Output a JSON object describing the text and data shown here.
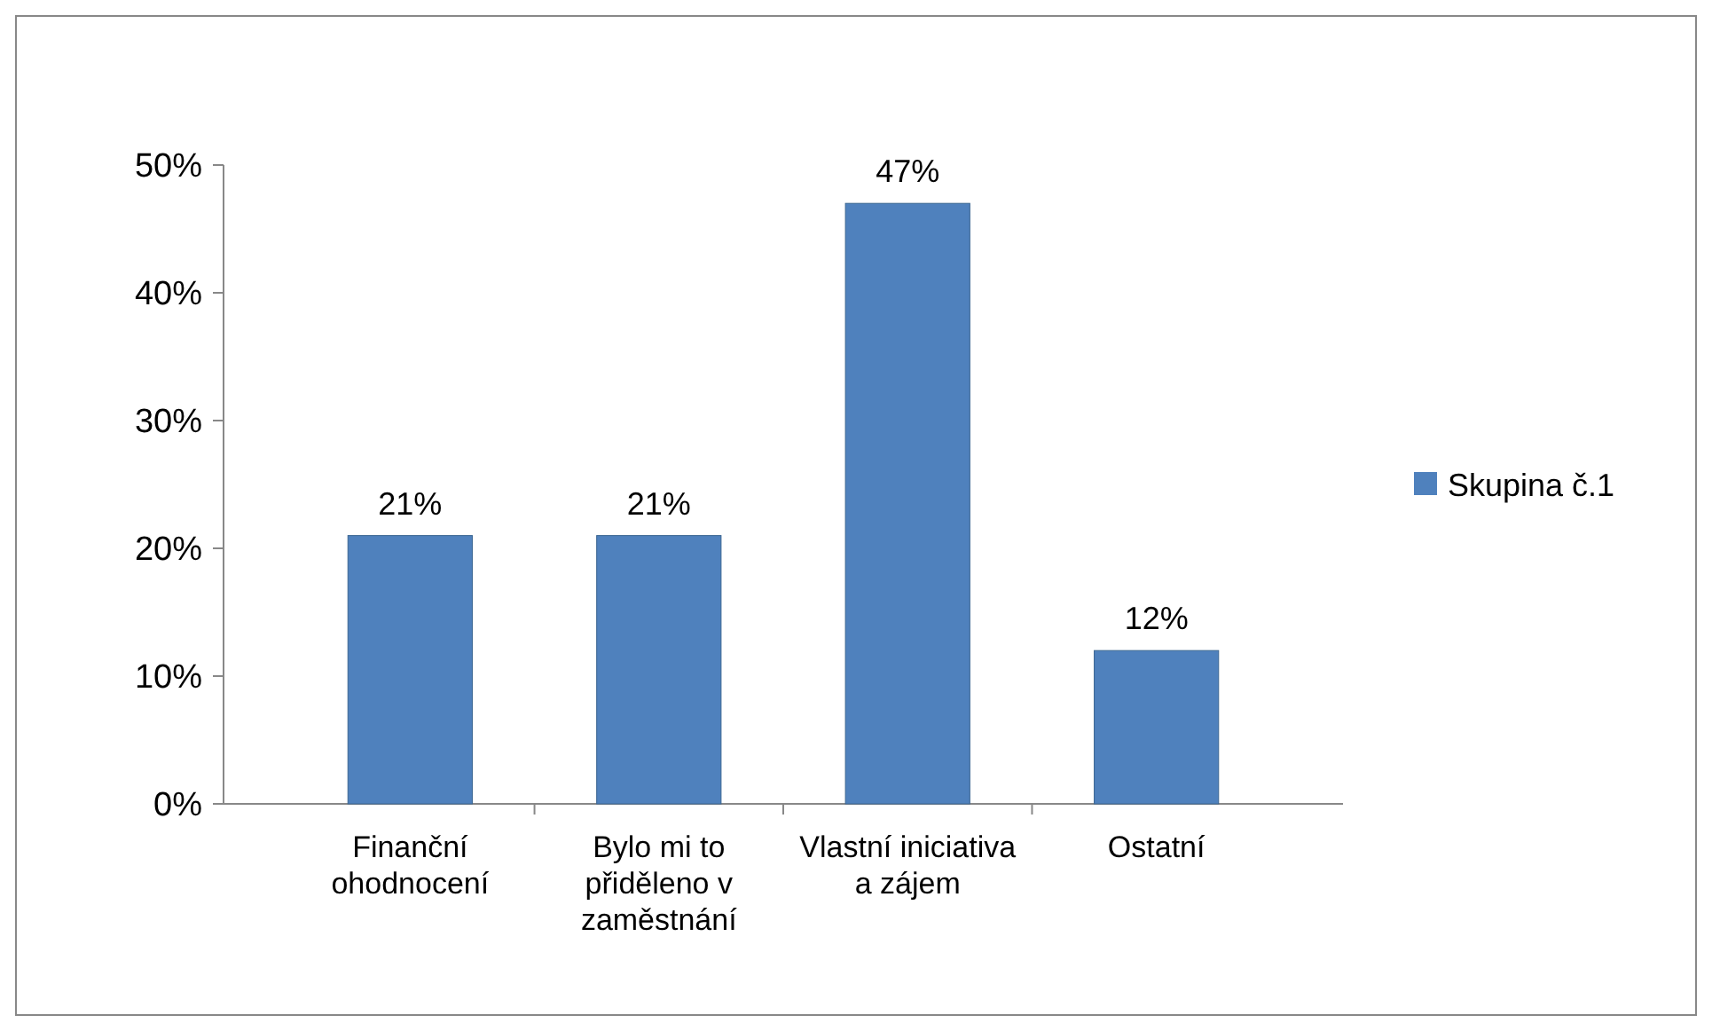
{
  "chart_data": {
    "type": "bar",
    "categories": [
      "Finanční ohodnocení",
      "Bylo mi to přiděleno v zaměstnání",
      "Vlastní iniciativa a zájem",
      "Ostatní"
    ],
    "series": [
      {
        "name": "Skupina č.1",
        "color": "#4f81bd",
        "values": [
          21,
          21,
          47,
          12
        ]
      }
    ],
    "ylim": [
      0,
      50
    ],
    "yticks": [
      {
        "value": 0,
        "label": "0%"
      },
      {
        "value": 10,
        "label": "10%"
      },
      {
        "value": 20,
        "label": "20%"
      },
      {
        "value": 30,
        "label": "30%"
      },
      {
        "value": 40,
        "label": "40%"
      },
      {
        "value": 50,
        "label": "50%"
      }
    ],
    "value_labels": [
      "21%",
      "21%",
      "47%",
      "12%"
    ],
    "legend": "right",
    "grid": false
  }
}
